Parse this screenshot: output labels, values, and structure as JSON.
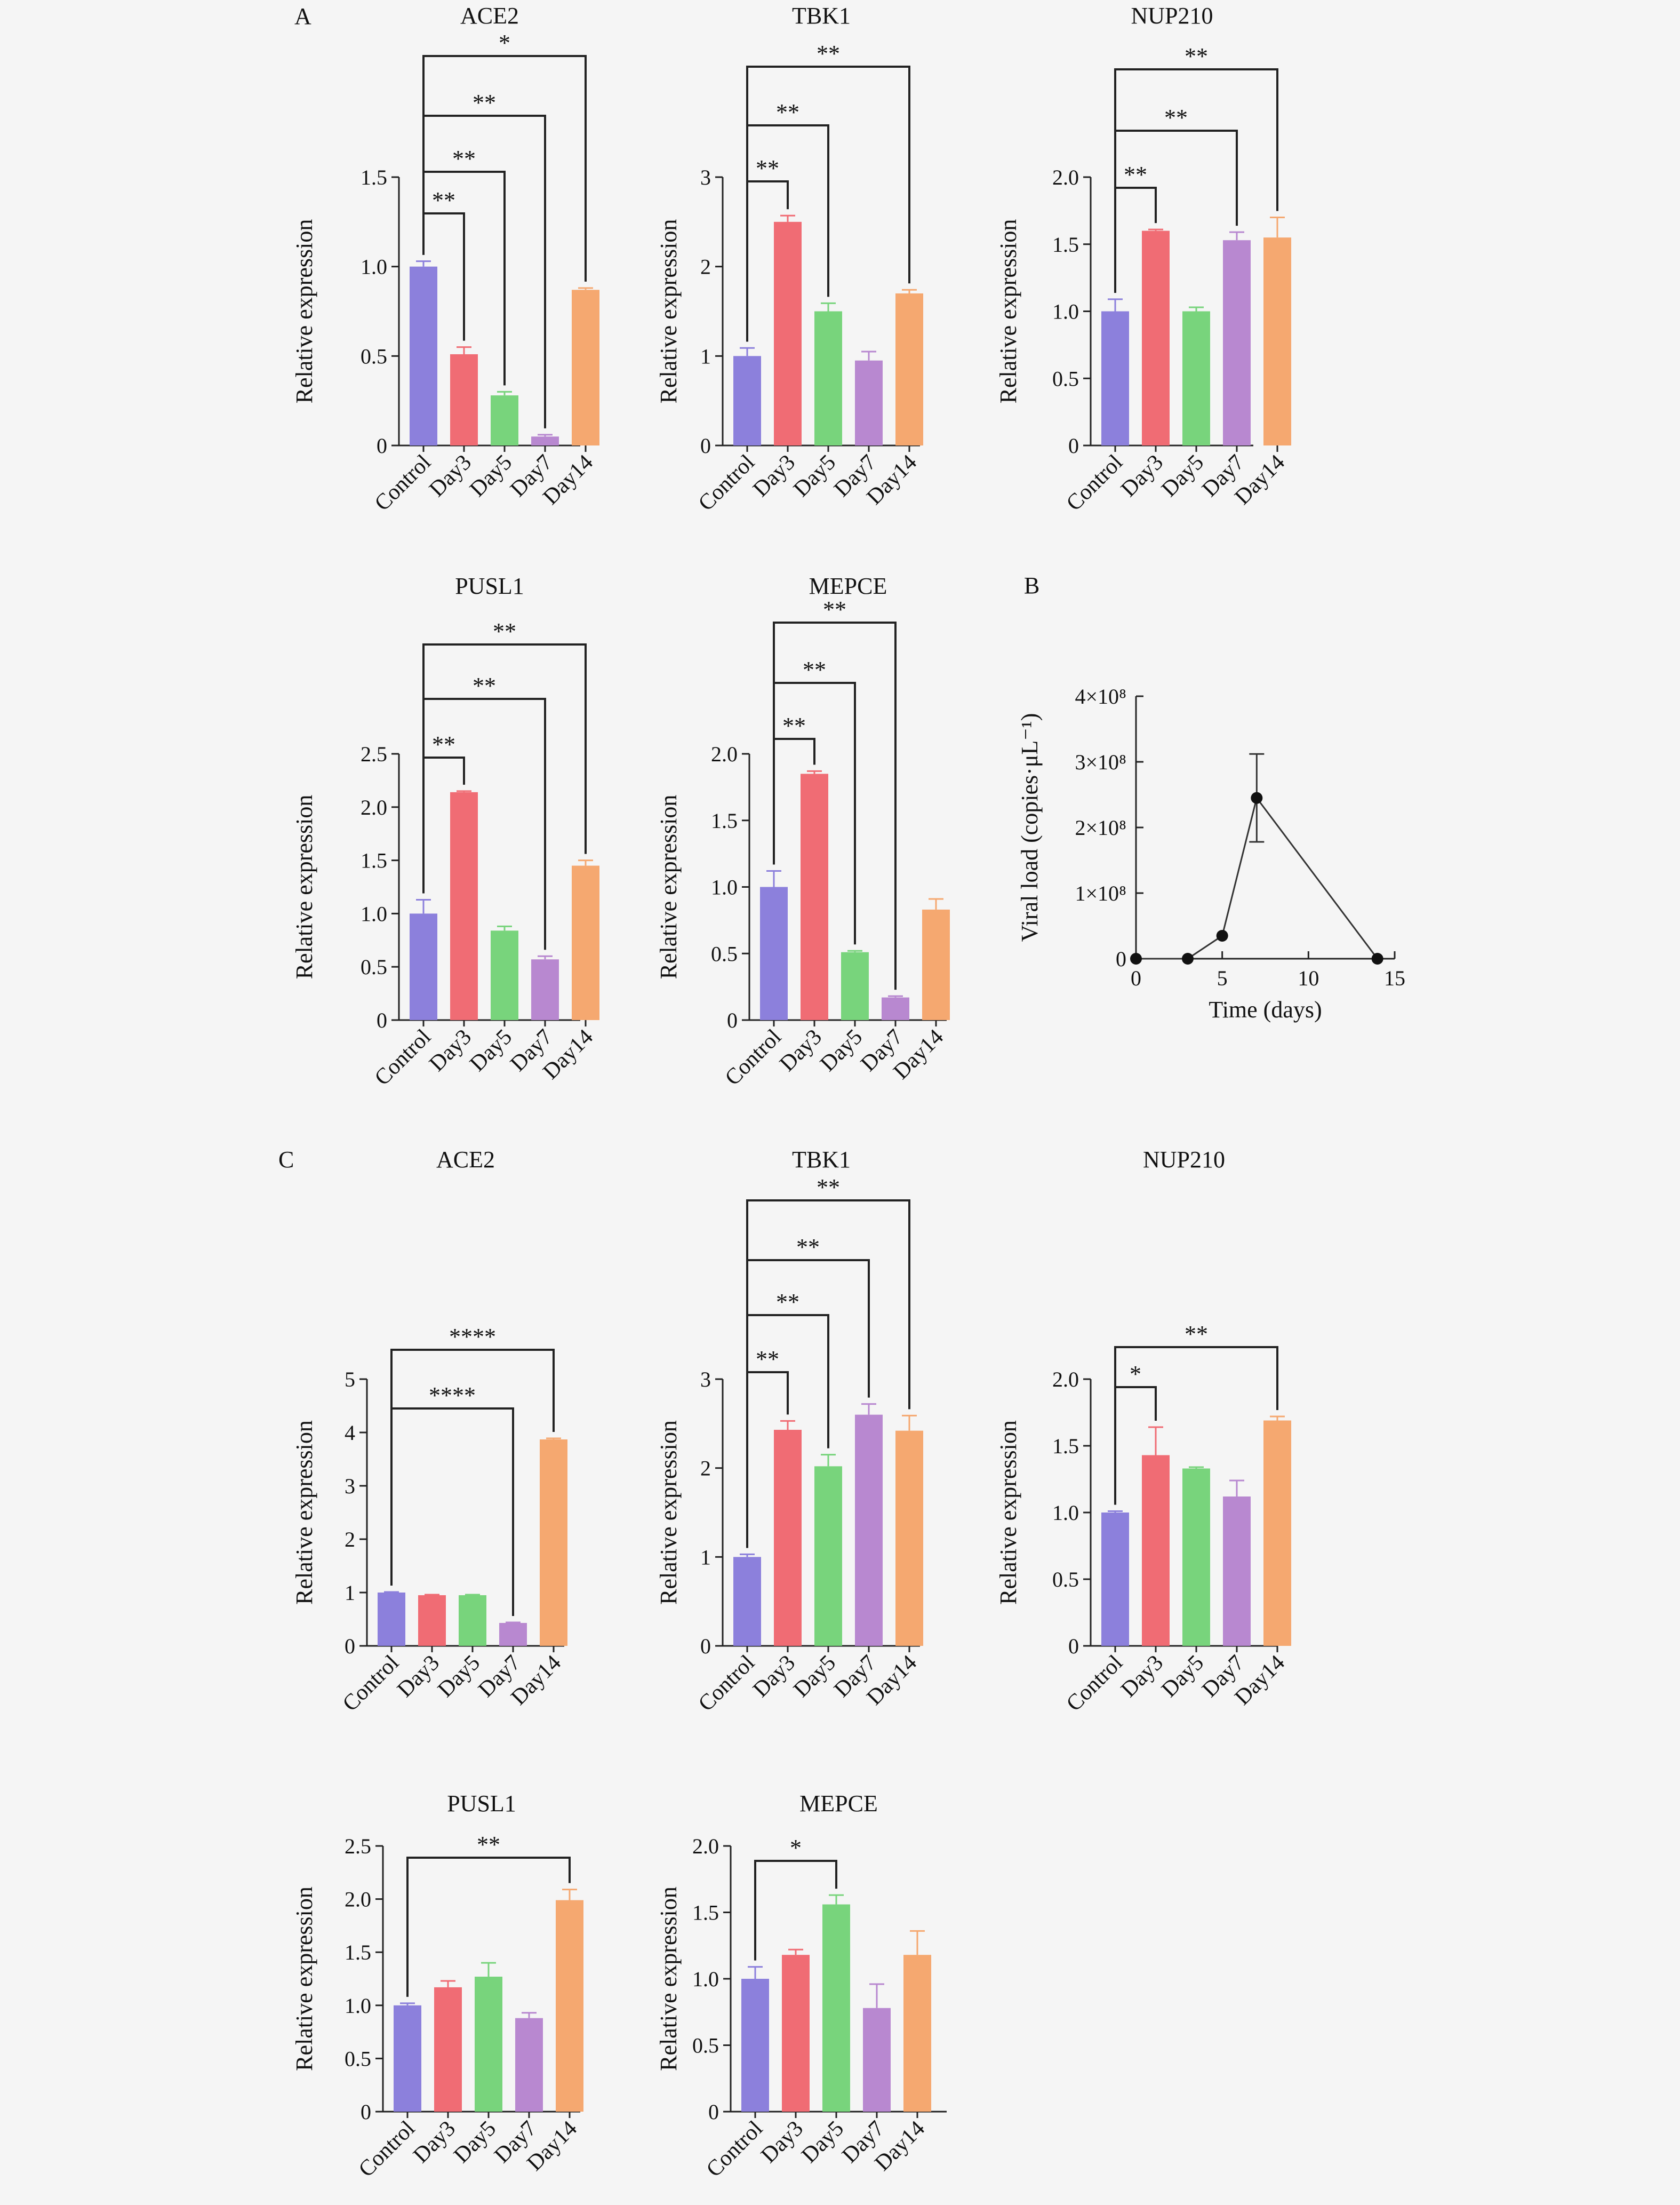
{
  "panels": {
    "A": "A",
    "B": "B",
    "C": "C"
  },
  "colors": {
    "bars": [
      "#8c80dc",
      "#f06c74",
      "#78d47c",
      "#b888d0",
      "#f5a870"
    ],
    "axis": "#222222",
    "bracket": "#222222"
  },
  "chart_data": [
    {
      "id": "A-ACE2",
      "type": "bar",
      "title": "ACE2",
      "ylabel": "Relative expression",
      "categories": [
        "Control",
        "Day3",
        "Day5",
        "Day7",
        "Day14"
      ],
      "values": [
        1.0,
        0.51,
        0.28,
        0.05,
        0.87
      ],
      "errors": [
        0.03,
        0.04,
        0.02,
        0.01,
        0.01
      ],
      "ylim": [
        0,
        1.5
      ],
      "yticks": [
        0,
        0.5,
        1.0,
        1.5
      ],
      "ytick_labels": [
        "0",
        "0.5",
        "1.0",
        "1.5"
      ],
      "significance": [
        {
          "from": "Control",
          "to": "Day3",
          "label": "**"
        },
        {
          "from": "Control",
          "to": "Day5",
          "label": "**"
        },
        {
          "from": "Control",
          "to": "Day7",
          "label": "**"
        },
        {
          "from": "Control",
          "to": "Day14",
          "label": "*"
        }
      ]
    },
    {
      "id": "A-TBK1",
      "type": "bar",
      "title": "TBK1",
      "ylabel": "Relative expression",
      "categories": [
        "Control",
        "Day3",
        "Day5",
        "Day7",
        "Day14"
      ],
      "values": [
        1.0,
        2.5,
        1.5,
        0.95,
        1.7
      ],
      "errors": [
        0.09,
        0.07,
        0.09,
        0.1,
        0.04
      ],
      "ylim": [
        0,
        3
      ],
      "yticks": [
        0,
        1,
        2,
        3
      ],
      "ytick_labels": [
        "0",
        "1",
        "2",
        "3"
      ],
      "significance": [
        {
          "from": "Control",
          "to": "Day3",
          "label": "**"
        },
        {
          "from": "Control",
          "to": "Day5",
          "label": "**"
        },
        {
          "from": "Control",
          "to": "Day14",
          "label": "**"
        }
      ]
    },
    {
      "id": "A-NUP210",
      "type": "bar",
      "title": "NUP210",
      "ylabel": "Relative expression",
      "categories": [
        "Control",
        "Day3",
        "Day5",
        "Day7",
        "Day14"
      ],
      "values": [
        1.0,
        1.6,
        1.0,
        1.53,
        1.55
      ],
      "errors": [
        0.09,
        0.01,
        0.03,
        0.06,
        0.15
      ],
      "ylim": [
        0,
        2.0
      ],
      "yticks": [
        0,
        0.5,
        1.0,
        1.5,
        2.0
      ],
      "ytick_labels": [
        "0",
        "0.5",
        "1.0",
        "1.5",
        "2.0"
      ],
      "significance": [
        {
          "from": "Control",
          "to": "Day3",
          "label": "**"
        },
        {
          "from": "Control",
          "to": "Day7",
          "label": "**"
        },
        {
          "from": "Control",
          "to": "Day14",
          "label": "**"
        }
      ]
    },
    {
      "id": "A-PUSL1",
      "type": "bar",
      "title": "PUSL1",
      "ylabel": "Relative expression",
      "categories": [
        "Control",
        "Day3",
        "Day5",
        "Day7",
        "Day14"
      ],
      "values": [
        1.0,
        2.14,
        0.84,
        0.57,
        1.45
      ],
      "errors": [
        0.13,
        0.01,
        0.04,
        0.03,
        0.05
      ],
      "ylim": [
        0,
        2.5
      ],
      "yticks": [
        0,
        0.5,
        1.0,
        1.5,
        2.0,
        2.5
      ],
      "ytick_labels": [
        "0",
        "0.5",
        "1.0",
        "1.5",
        "2.0",
        "2.5"
      ],
      "significance": [
        {
          "from": "Control",
          "to": "Day3",
          "label": "**"
        },
        {
          "from": "Control",
          "to": "Day7",
          "label": "**"
        },
        {
          "from": "Control",
          "to": "Day14",
          "label": "**"
        }
      ]
    },
    {
      "id": "A-MEPCE",
      "type": "bar",
      "title": "MEPCE",
      "ylabel": "Relative expression",
      "categories": [
        "Control",
        "Day3",
        "Day5",
        "Day7",
        "Day14"
      ],
      "values": [
        1.0,
        1.85,
        0.51,
        0.17,
        0.83
      ],
      "errors": [
        0.12,
        0.02,
        0.01,
        0.01,
        0.08
      ],
      "ylim": [
        0,
        2.0
      ],
      "yticks": [
        0,
        0.5,
        1.0,
        1.5,
        2.0
      ],
      "ytick_labels": [
        "0",
        "0.5",
        "1.0",
        "1.5",
        "2.0"
      ],
      "significance": [
        {
          "from": "Control",
          "to": "Day3",
          "label": "**"
        },
        {
          "from": "Control",
          "to": "Day5",
          "label": "**"
        },
        {
          "from": "Control",
          "to": "Day7",
          "label": "**"
        }
      ]
    },
    {
      "id": "B-viral",
      "type": "line",
      "title": "",
      "xlabel": "Time (days)",
      "ylabel": "Viral load (copies·μL⁻¹)",
      "x": [
        0,
        3,
        5,
        7,
        14
      ],
      "y": [
        0,
        0,
        35000000,
        245000000,
        0
      ],
      "errors": [
        0,
        0,
        0,
        67000000,
        0
      ],
      "xlim": [
        0,
        15
      ],
      "xticks": [
        0,
        5,
        10,
        15
      ],
      "xtick_labels": [
        "0",
        "5",
        "10",
        "15"
      ],
      "ylim": [
        0,
        400000000
      ],
      "yticks": [
        0,
        100000000,
        200000000,
        300000000,
        400000000
      ],
      "ytick_labels": [
        "0",
        "1×10⁸",
        "2×10⁸",
        "3×10⁸",
        "4×10⁸"
      ]
    },
    {
      "id": "C-ACE2",
      "type": "bar",
      "title": "ACE2",
      "ylabel": "Relative expression",
      "categories": [
        "Control",
        "Day3",
        "Day5",
        "Day7",
        "Day14"
      ],
      "values": [
        1.0,
        0.95,
        0.95,
        0.43,
        3.87
      ],
      "errors": [
        0.01,
        0.01,
        0.01,
        0.01,
        0.02
      ],
      "ylim": [
        0,
        5
      ],
      "yticks": [
        0,
        1,
        2,
        3,
        4,
        5
      ],
      "ytick_labels": [
        "0",
        "1",
        "2",
        "3",
        "4",
        "5"
      ],
      "significance": [
        {
          "from": "Control",
          "to": "Day7",
          "label": "****"
        },
        {
          "from": "Control",
          "to": "Day14",
          "label": "****"
        }
      ]
    },
    {
      "id": "C-TBK1",
      "type": "bar",
      "title": "TBK1",
      "ylabel": "Relative expression",
      "categories": [
        "Control",
        "Day3",
        "Day5",
        "Day7",
        "Day14"
      ],
      "values": [
        1.0,
        2.43,
        2.02,
        2.6,
        2.42
      ],
      "errors": [
        0.03,
        0.1,
        0.13,
        0.12,
        0.17
      ],
      "ylim": [
        0,
        3
      ],
      "yticks": [
        0,
        1,
        2,
        3
      ],
      "ytick_labels": [
        "0",
        "1",
        "2",
        "3"
      ],
      "significance": [
        {
          "from": "Control",
          "to": "Day3",
          "label": "**"
        },
        {
          "from": "Control",
          "to": "Day5",
          "label": "**"
        },
        {
          "from": "Control",
          "to": "Day7",
          "label": "**"
        },
        {
          "from": "Control",
          "to": "Day14",
          "label": "**"
        }
      ]
    },
    {
      "id": "C-NUP210",
      "type": "bar",
      "title": "NUP210",
      "ylabel": "Relative expression",
      "categories": [
        "Control",
        "Day3",
        "Day5",
        "Day7",
        "Day14"
      ],
      "values": [
        1.0,
        1.43,
        1.33,
        1.12,
        1.69
      ],
      "errors": [
        0.01,
        0.21,
        0.01,
        0.12,
        0.03
      ],
      "ylim": [
        0,
        2.0
      ],
      "yticks": [
        0,
        0.5,
        1.0,
        1.5,
        2.0
      ],
      "ytick_labels": [
        "0",
        "0.5",
        "1.0",
        "1.5",
        "2.0"
      ],
      "significance": [
        {
          "from": "Control",
          "to": "Day3",
          "label": "*"
        },
        {
          "from": "Control",
          "to": "Day14",
          "label": "**"
        }
      ]
    },
    {
      "id": "C-PUSL1",
      "type": "bar",
      "title": "PUSL1",
      "ylabel": "Relative expression",
      "categories": [
        "Control",
        "Day3",
        "Day5",
        "Day7",
        "Day14"
      ],
      "values": [
        1.0,
        1.17,
        1.27,
        0.88,
        1.99
      ],
      "errors": [
        0.02,
        0.06,
        0.13,
        0.05,
        0.1
      ],
      "ylim": [
        0,
        2.5
      ],
      "yticks": [
        0,
        0.5,
        1.0,
        1.5,
        2.0,
        2.5
      ],
      "ytick_labels": [
        "0",
        "0.5",
        "1.0",
        "1.5",
        "2.0",
        "2.5"
      ],
      "significance": [
        {
          "from": "Control",
          "to": "Day14",
          "label": "**"
        }
      ]
    },
    {
      "id": "C-MEPCE",
      "type": "bar",
      "title": "MEPCE",
      "ylabel": "Relative expression",
      "categories": [
        "Control",
        "Day3",
        "Day5",
        "Day7",
        "Day14"
      ],
      "values": [
        1.0,
        1.18,
        1.56,
        0.78,
        1.18
      ],
      "errors": [
        0.09,
        0.04,
        0.07,
        0.18,
        0.18
      ],
      "ylim": [
        0,
        2.0
      ],
      "yticks": [
        0,
        0.5,
        1.0,
        1.5,
        2.0
      ],
      "ytick_labels": [
        "0",
        "0.5",
        "1.0",
        "1.5",
        "2.0"
      ],
      "significance": [
        {
          "from": "Control",
          "to": "Day5",
          "label": "*"
        }
      ]
    }
  ]
}
